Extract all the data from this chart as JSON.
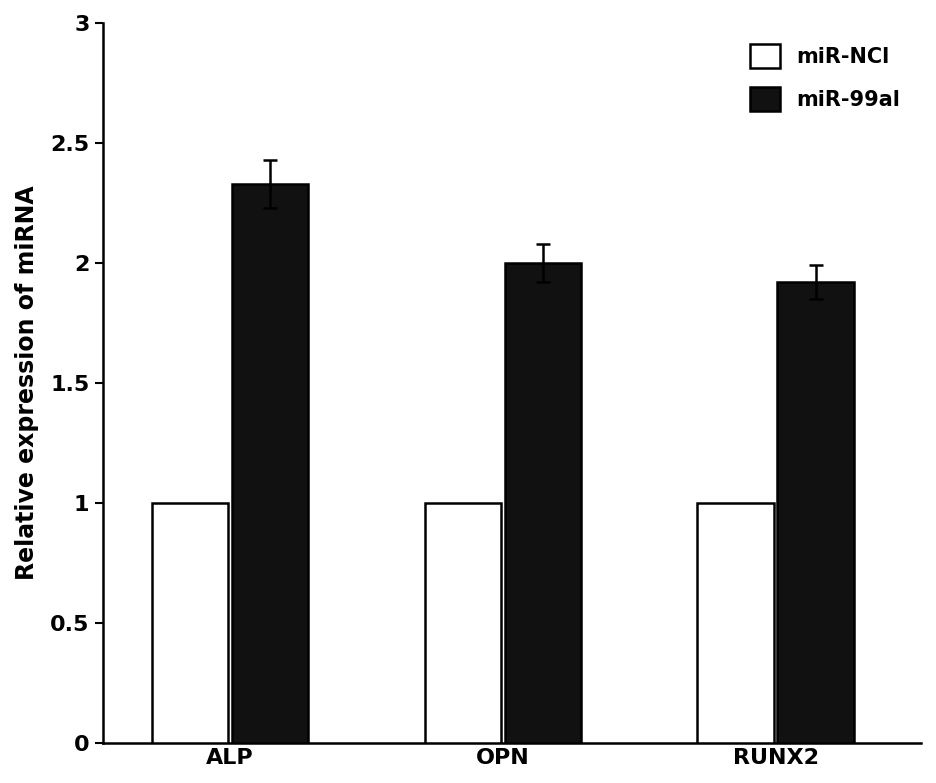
{
  "categories": [
    "ALP",
    "OPN",
    "RUNX2"
  ],
  "ncl_values": [
    1.0,
    1.0,
    1.0
  ],
  "mir99a_values": [
    2.33,
    2.0,
    1.92
  ],
  "ncl_errors": [
    0.0,
    0.0,
    0.0
  ],
  "mir99a_errors": [
    0.1,
    0.08,
    0.07
  ],
  "ncl_color": "#ffffff",
  "mir99a_color": "#111111",
  "bar_edgecolor": "#000000",
  "bar_width": 0.42,
  "ylabel": "Relative expression of miRNA",
  "ylim": [
    0,
    3.0
  ],
  "yticks": [
    0,
    0.5,
    1.0,
    1.5,
    2.0,
    2.5,
    3.0
  ],
  "ytick_labels": [
    "0",
    "0.5",
    "1",
    "1.5",
    "2",
    "2.5",
    "3"
  ],
  "legend_labels": [
    "miR-NCl",
    "miR-99al"
  ],
  "legend_loc": "upper right",
  "tick_fontsize": 16,
  "label_fontsize": 17,
  "legend_fontsize": 15,
  "figure_width": 9.36,
  "figure_height": 7.83,
  "dpi": 100,
  "group_positions": [
    1.0,
    2.5,
    4.0
  ],
  "xlim": [
    0.3,
    4.8
  ]
}
